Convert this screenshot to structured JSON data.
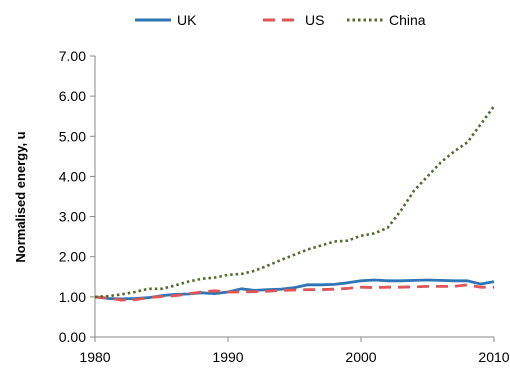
{
  "chart_data": {
    "type": "line",
    "title": "",
    "xlabel": "",
    "ylabel": "Normalised energy, u",
    "xlim": [
      1980,
      2010
    ],
    "ylim": [
      0,
      7
    ],
    "x_ticks": [
      "1980",
      "1990",
      "2000",
      "2010"
    ],
    "y_ticks": [
      "0.00",
      "1.00",
      "2.00",
      "3.00",
      "4.00",
      "5.00",
      "6.00",
      "7.00"
    ],
    "grid": false,
    "legend_position": "top",
    "x": [
      1980,
      1981,
      1982,
      1983,
      1984,
      1985,
      1986,
      1987,
      1988,
      1989,
      1990,
      1991,
      1992,
      1993,
      1994,
      1995,
      1996,
      1997,
      1998,
      1999,
      2000,
      2001,
      2002,
      2003,
      2004,
      2005,
      2006,
      2007,
      2008,
      2009,
      2010
    ],
    "series": [
      {
        "name": "UK",
        "color": "#2e75b6",
        "dash": "solid",
        "values": [
          1.0,
          0.96,
          0.95,
          0.96,
          0.98,
          1.03,
          1.06,
          1.07,
          1.1,
          1.08,
          1.12,
          1.2,
          1.16,
          1.18,
          1.19,
          1.23,
          1.3,
          1.3,
          1.31,
          1.35,
          1.4,
          1.42,
          1.4,
          1.4,
          1.41,
          1.42,
          1.41,
          1.4,
          1.4,
          1.32,
          1.38
        ]
      },
      {
        "name": "US",
        "color": "#e05555",
        "dash": "dashed",
        "values": [
          1.0,
          0.97,
          0.92,
          0.93,
          0.98,
          1.01,
          1.03,
          1.07,
          1.12,
          1.15,
          1.12,
          1.12,
          1.13,
          1.14,
          1.16,
          1.17,
          1.18,
          1.18,
          1.19,
          1.21,
          1.24,
          1.23,
          1.24,
          1.24,
          1.25,
          1.26,
          1.26,
          1.26,
          1.3,
          1.24,
          1.24
        ]
      },
      {
        "name": "China",
        "color": "#4e6b2a",
        "dash": "dotted",
        "values": [
          1.0,
          1.02,
          1.06,
          1.12,
          1.2,
          1.2,
          1.28,
          1.38,
          1.45,
          1.48,
          1.55,
          1.57,
          1.65,
          1.78,
          1.92,
          2.05,
          2.18,
          2.28,
          2.38,
          2.4,
          2.52,
          2.58,
          2.72,
          3.15,
          3.65,
          4.0,
          4.35,
          4.62,
          4.85,
          5.3,
          5.75
        ]
      }
    ]
  }
}
